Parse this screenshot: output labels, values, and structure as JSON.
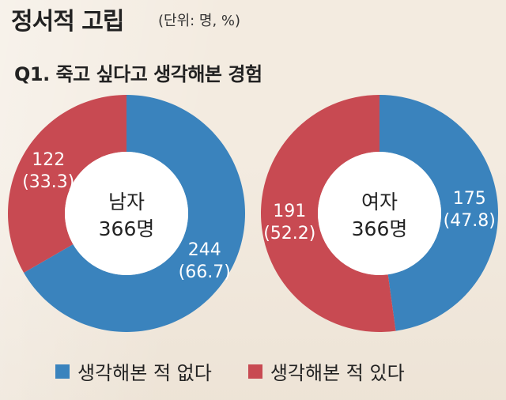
{
  "title": "정서적 고립",
  "unit": "(단위: 명, %)",
  "question": "Q1. 죽고 싶다고 생각해본 경험",
  "colors": {
    "no": "#3a83bd",
    "yes": "#c84a52"
  },
  "legend": [
    {
      "label": "생각해본 적 없다",
      "color": "#3a83bd"
    },
    {
      "label": "생각해본 적 있다",
      "color": "#c84a52"
    }
  ],
  "chart_data": [
    {
      "type": "pie",
      "center_lines": [
        "남자",
        "366명"
      ],
      "slices": [
        {
          "name": "생각해본 적 없다",
          "count": 244,
          "percent": 66.7,
          "count_label": "244",
          "percent_label": "(66.7)",
          "color": "#3a83bd"
        },
        {
          "name": "생각해본 적 있다",
          "count": 122,
          "percent": 33.3,
          "count_label": "122",
          "percent_label": "(33.3)",
          "color": "#c84a52"
        }
      ]
    },
    {
      "type": "pie",
      "center_lines": [
        "여자",
        "366명"
      ],
      "slices": [
        {
          "name": "생각해본 적 없다",
          "count": 175,
          "percent": 47.8,
          "count_label": "175",
          "percent_label": "(47.8)",
          "color": "#3a83bd"
        },
        {
          "name": "생각해본 적 있다",
          "count": 191,
          "percent": 52.2,
          "count_label": "191",
          "percent_label": "(52.2)",
          "color": "#c84a52"
        }
      ]
    }
  ]
}
